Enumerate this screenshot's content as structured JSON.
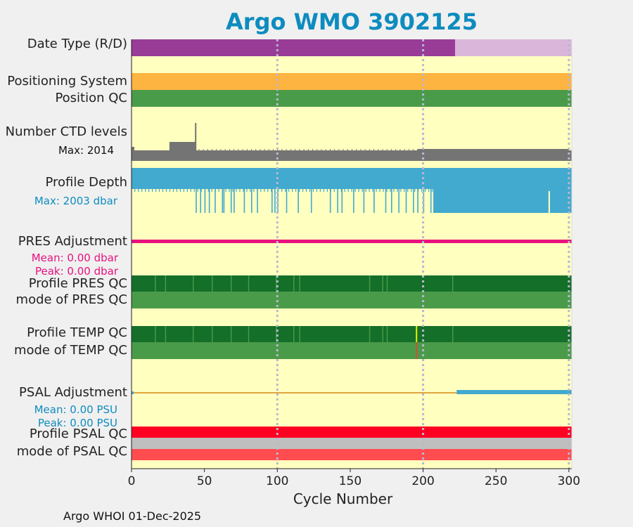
{
  "header": {
    "title": "Argo WMO 3902125"
  },
  "labels": {
    "date_type": "Date Type (R/D)",
    "positioning_system": "Positioning System",
    "position_qc": "Position QC",
    "ctd_levels": "Number CTD levels",
    "ctd_max": "Max: 2014",
    "profile_depth": "Profile Depth",
    "depth_max": "Max: 2003 dbar",
    "pres_adjustment": "PRES Adjustment",
    "pres_mean": "Mean: 0.00 dbar",
    "pres_peak": "Peak: 0.00 dbar",
    "profile_pres_qc": "Profile PRES QC",
    "mode_pres_qc": "mode of PRES QC",
    "profile_temp_qc": "Profile TEMP QC",
    "mode_temp_qc": "mode of TEMP QC",
    "psal_adjustment": "PSAL Adjustment",
    "psal_mean": "Mean: 0.00 PSU",
    "psal_peak": "Peak: 0.00 PSU",
    "profile_psal_qc": "Profile PSAL QC",
    "mode_psal_qc": "mode of PSAL QC"
  },
  "footer": {
    "text": "Argo WHOI 01-Dec-2025"
  },
  "colors": {
    "title": "#0d8cbf",
    "plot_bg": "#ffffc0",
    "realtime": "#983c98",
    "delayed": "#dbb6db",
    "positioning": "#fdb441",
    "qc_good": "#4a9b49",
    "qc_dark": "#146f29",
    "ctd": "#747474",
    "depth": "#42a9cf",
    "pres_adj": "#e8117e",
    "psal_adj": "#42a9cf",
    "psal_line": "#e0a63c",
    "psal_bad": "#ff0022",
    "psal_gray": "#bfbfbf",
    "psal_mode": "#ff4c4e",
    "grid": "#b8b8d0"
  },
  "chart_data": {
    "type": "timeline",
    "title": "Argo WMO 3902125",
    "xlabel": "Cycle Number",
    "ylabel": "",
    "xlim": [
      0,
      302
    ],
    "xticks": [
      0,
      50,
      100,
      150,
      200,
      250,
      300
    ],
    "grid": "vertical dotted at 100, 200, 300",
    "rows": [
      {
        "name": "Date Type (R/D)",
        "segments": [
          {
            "from": 0,
            "to": 222,
            "value": "R"
          },
          {
            "from": 222,
            "to": 302,
            "value": "D"
          }
        ]
      },
      {
        "name": "Positioning System",
        "value": "all cycles"
      },
      {
        "name": "Position QC",
        "value": "good (all cycles)"
      },
      {
        "name": "Number CTD levels",
        "max": 2014,
        "spike_cycle": 44
      },
      {
        "name": "Profile Depth",
        "max_dbar": 2003
      },
      {
        "name": "PRES Adjustment",
        "mean_dbar": 0.0,
        "peak_dbar": 0.0
      },
      {
        "name": "Profile PRES QC",
        "flagged_cycles": [
          16,
          23,
          42,
          55,
          68,
          80,
          99,
          111,
          115,
          163,
          172,
          175,
          220
        ]
      },
      {
        "name": "Profile TEMP QC",
        "flagged_cycles": [
          16,
          23,
          42,
          55,
          68,
          80,
          99,
          111,
          115,
          163,
          172,
          175,
          195,
          220
        ]
      },
      {
        "name": "mode of TEMP QC",
        "flagged_cycles": [
          195
        ]
      },
      {
        "name": "PSAL Adjustment",
        "mean_psu": 0.0,
        "peak_psu": 0.0,
        "adjusted_from_cycle": 223
      },
      {
        "name": "Profile PSAL QC",
        "value": "bad (all cycles)"
      },
      {
        "name": "mode of PSAL QC",
        "value": "bad (all cycles)"
      }
    ]
  }
}
